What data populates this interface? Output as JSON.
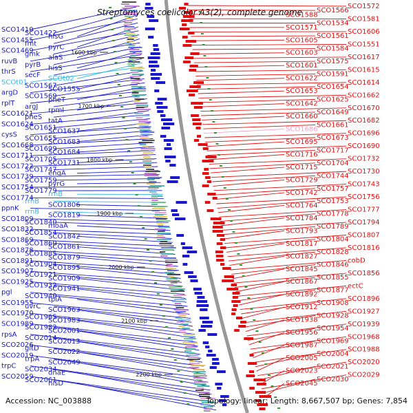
{
  "title": "Streptomyces coelicolor A3(2), complete genome",
  "accession": "Accession: NC_003888",
  "topology": "Topology: linear; Length: 8,667,507 bp; Genes: 7,854",
  "colors": {
    "left": "#1a1acc",
    "right": "#e01010",
    "rna": "#39b6e8",
    "pink": "#f0a0c8",
    "backbone": "#999999"
  },
  "ticks": [
    "1600 kbp",
    "1700 kbp",
    "1800 kbp",
    "1900 kbp",
    "2000 kbp",
    "2100 kbp",
    "2200 kbp"
  ],
  "left_labels": [
    "SCO1410",
    "SCO1422",
    "hisG",
    "SCO1455",
    "fmt",
    "pyrC",
    "SCO1469",
    "gmk",
    "alaS",
    "ruvB",
    "pyrB",
    "hisS",
    "thrS",
    "secF",
    "SCOt02",
    "SCOt01",
    "SCO1567",
    "SCO1555",
    "argD",
    "SCO1569",
    "pheT",
    "rplT",
    "argJ",
    "rpmI",
    "SCO1621",
    "pheS",
    "tatA",
    "SCO1624",
    "SCO1651",
    "SCO1637",
    "cysS",
    "SCO1655",
    "SCO1683",
    "SCO1668",
    "SCO1699",
    "SCO1684",
    "SCO1711",
    "SCO1705",
    "SCO1731",
    "SCO1722",
    "SCO1747",
    "engA",
    "SCO1739",
    "SCO1759",
    "pyrG",
    "SCO1754",
    "SCO1779",
    "rrnB",
    "SCO1774",
    "rrnB",
    "SCO1806",
    "ppnK",
    "rrnB",
    "SCO1819",
    "SCO1809",
    "SCO1840",
    "moaA",
    "SCO1832",
    "SCO1854",
    "SCO1842",
    "SCO1869",
    "SCO1860",
    "SCO1861",
    "SCO1878",
    "SCO1885",
    "SCO1879",
    "SCO1891",
    "SCO1904",
    "SCO1895",
    "SCO1907",
    "SCO1921",
    "SCO1909",
    "SCO1925",
    "SCO1932",
    "SCO1941",
    "pgl",
    "SCO1940",
    "tpiA",
    "SCO1955",
    "uvrC",
    "SCO1963",
    "SCO1970",
    "SCO1965",
    "SCO1983",
    "SCO1989",
    "SCO1982",
    "SCO2001",
    "rpsA",
    "SCO2014",
    "SCO2013",
    "SCO2026",
    "gltD",
    "SCO2022",
    "SCO2019",
    "trpA",
    "SCO2049",
    "trpC",
    "SCO2034",
    "dnaE",
    "SCO2059",
    "SCO2061",
    "hisD"
  ],
  "right_labels": [
    "SCO1572",
    "SCO1566",
    "SCO1588",
    "SCO1581",
    "SCO1534",
    "SCO1571",
    "SCO1606",
    "SCO1561",
    "SCO1605",
    "SCO1551",
    "SCO1584",
    "SCO1603",
    "SCO1617",
    "SCO1575",
    "SCO1601",
    "SCO1615",
    "SCO1591",
    "SCO1622",
    "SCO1614",
    "SCO1654",
    "SCO1653",
    "SCO1662",
    "SCO1625",
    "SCO1642",
    "SCO1670",
    "SCO1649",
    "SCO1660",
    "SCO1682",
    "SCO1661",
    "SCO1686",
    "SCO1696",
    "SCO1673",
    "SCO1695",
    "SCO1690",
    "SCO1717",
    "SCO1716",
    "SCO1732",
    "SCO1704",
    "SCO1715",
    "SCO1730",
    "SCO1744",
    "SCO1729",
    "SCO1743",
    "SCO1757",
    "SCO1742",
    "SCO1756",
    "SCO1753",
    "SCO1764",
    "SCO1777",
    "SCO1778",
    "SCO1784",
    "SCO1794",
    "SCO1789",
    "SCO1793",
    "SCO1807",
    "SCO1804",
    "SCO1817",
    "SCO1816",
    "SCO1828",
    "SCO1827",
    "cobD",
    "SCO1846",
    "SCO1845",
    "SCO1856",
    "SCO1855",
    "SCO1867",
    "ectC",
    "SCO1877",
    "SCO1892",
    "SCO1896",
    "SCO1908",
    "SCO1912",
    "SCO1927",
    "SCO1928",
    "SCO1938",
    "SCO1939",
    "SCO1954",
    "SCO1956",
    "SCO1968",
    "SCO1969",
    "SCO1987",
    "SCO1988",
    "SCO2004",
    "SCO2005",
    "SCO2020",
    "SCO2021",
    "SCO2023",
    "SCO2029",
    "SCO2030",
    "SCO2045"
  ]
}
